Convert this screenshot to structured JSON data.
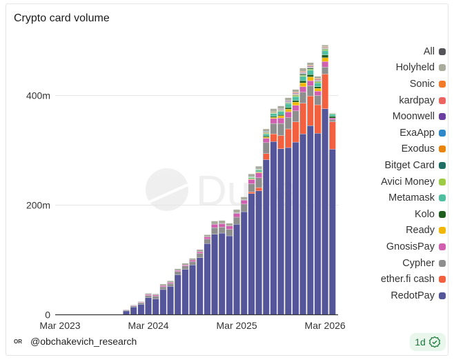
{
  "title": "Crypto card volume",
  "watermark": "Dune",
  "author": "@obchakevich_research",
  "author_icon": "OR",
  "refresh_badge": "1d",
  "legend_all": {
    "label": "All",
    "color": "#555559"
  },
  "chart_data": {
    "type": "bar",
    "stacked": true,
    "title": "Crypto card volume",
    "xlabel": "",
    "ylabel": "",
    "ylim": [
      0,
      500
    ],
    "yticks": [
      {
        "value": 0,
        "label": "0"
      },
      {
        "value": 200,
        "label": "200m"
      },
      {
        "value": 400,
        "label": "400m"
      }
    ],
    "xticks": [
      {
        "index": 0,
        "label": "Mar 2023"
      },
      {
        "index": 12,
        "label": "Mar 2024"
      },
      {
        "index": 24,
        "label": "Mar 2025"
      },
      {
        "index": 36,
        "label": "Mar 2026"
      }
    ],
    "grid": true,
    "legend_position": "right",
    "unit": "millions USD",
    "categories": [
      "Mar 2023",
      "Apr 2023",
      "May 2023",
      "Jun 2023",
      "Jul 2023",
      "Aug 2023",
      "Sep 2023",
      "Oct 2023",
      "Nov 2023",
      "Dec 2023",
      "Jan 2024",
      "Feb 2024",
      "Mar 2024",
      "Apr 2024",
      "May 2024",
      "Jun 2024",
      "Jul 2024",
      "Aug 2024",
      "Sep 2024",
      "Oct 2024",
      "Nov 2024",
      "Dec 2024",
      "Jan 2025",
      "Feb 2025",
      "Mar 2025",
      "Apr 2025",
      "May 2025",
      "Jun 2025",
      "Jul 2025",
      "Aug 2025",
      "Sep 2025",
      "Oct 2025",
      "Nov 2025",
      "Dec 2025",
      "Jan 2026",
      "Feb 2026",
      "Mar 2026",
      "Apr 2026"
    ],
    "series": [
      {
        "name": "RedotPay",
        "color": "#55559a",
        "values": [
          0,
          0,
          0,
          0,
          0,
          0,
          0,
          0,
          0,
          7,
          14,
          19,
          31,
          29,
          46,
          52,
          73,
          83,
          91,
          104,
          130,
          147,
          149,
          144,
          165,
          188,
          221,
          226,
          283,
          316,
          303,
          305,
          315,
          330,
          345,
          331,
          376,
          302
        ]
      },
      {
        "name": "ether.fi cash",
        "color": "#f2603f",
        "values": [
          0,
          0,
          0,
          0,
          0,
          0,
          0,
          0,
          0,
          0,
          0,
          0,
          0,
          0,
          0,
          0,
          0,
          0,
          0,
          0,
          0,
          0,
          0,
          0,
          0,
          0,
          3,
          6,
          11,
          14,
          24,
          34,
          37,
          56,
          54,
          52,
          63,
          50
        ]
      },
      {
        "name": "Cypher",
        "color": "#8e8e8e",
        "values": [
          0.5,
          0.5,
          0.5,
          0.5,
          0.5,
          0.5,
          0.5,
          0.5,
          0.5,
          1.5,
          2,
          3,
          4,
          5,
          5,
          5,
          6,
          6,
          6,
          8,
          8,
          12,
          11,
          12,
          13,
          14,
          15,
          18,
          20,
          19,
          22,
          21,
          20,
          20,
          19,
          17,
          13,
          4
        ]
      },
      {
        "name": "GnosisPay",
        "color": "#d05fb0",
        "values": [
          0,
          0,
          0,
          0,
          0,
          0,
          0,
          0,
          0,
          0.5,
          1,
          1,
          2,
          2,
          2,
          2,
          2,
          2,
          3,
          3,
          4,
          6,
          6,
          6,
          7,
          7,
          8,
          9,
          8,
          9,
          10,
          10,
          10,
          10,
          9,
          8,
          10,
          3
        ]
      },
      {
        "name": "Ready",
        "color": "#f2b705",
        "values": [
          0,
          0,
          0,
          0,
          0,
          0,
          0,
          0,
          0,
          0,
          0,
          0,
          0,
          0,
          0,
          0,
          0,
          0,
          0,
          0,
          0,
          0,
          0,
          0,
          0,
          0,
          1,
          1,
          2,
          2,
          4,
          5,
          6,
          7,
          7,
          5,
          7,
          0
        ]
      },
      {
        "name": "Kolo",
        "color": "#1d5e1f",
        "values": [
          0,
          0,
          0,
          0,
          0,
          0,
          0,
          0,
          0,
          0,
          0,
          0,
          0,
          0,
          0,
          0,
          0,
          0,
          0,
          0,
          0,
          0,
          0,
          0,
          0,
          0,
          0,
          1,
          2,
          2,
          2,
          3,
          3,
          4,
          4,
          3,
          5,
          3
        ]
      },
      {
        "name": "Metamask",
        "color": "#4fbfa0",
        "values": [
          0,
          0,
          0,
          0,
          0,
          0,
          0,
          0,
          0,
          0,
          0,
          0,
          0,
          0,
          0,
          0,
          0,
          0,
          0,
          0,
          0,
          0,
          0,
          0,
          1,
          1,
          2,
          3,
          4,
          5,
          6,
          7,
          7,
          8,
          8,
          7,
          8,
          4
        ]
      },
      {
        "name": "Avici Money",
        "color": "#9ccc45",
        "values": [
          0,
          0,
          0,
          0,
          0,
          0,
          0,
          0,
          0,
          0,
          0,
          0,
          0,
          0,
          0,
          0,
          0,
          0,
          0,
          0,
          0,
          0,
          0,
          0,
          0,
          0,
          1,
          1,
          1,
          1,
          1,
          1,
          2,
          2,
          2,
          2,
          2,
          1
        ]
      },
      {
        "name": "Bitget Card",
        "color": "#1f6e66",
        "values": [
          0,
          0,
          0,
          0,
          0,
          0,
          0,
          0,
          0,
          0,
          0,
          0,
          0,
          0,
          0,
          0,
          0,
          0,
          0,
          0,
          0,
          0,
          0,
          0,
          0,
          0,
          0,
          0,
          1,
          1,
          1,
          1,
          1,
          2,
          2,
          1,
          1,
          0
        ]
      },
      {
        "name": "Exodus",
        "color": "#e8830c",
        "values": [
          0,
          0,
          0,
          0,
          0,
          0,
          0,
          0,
          0,
          0,
          0,
          0,
          0,
          0,
          0,
          0,
          0,
          0,
          0,
          0,
          0,
          0,
          0,
          0,
          0,
          0,
          0,
          0,
          1,
          1,
          1,
          1,
          1,
          1,
          1,
          1,
          1,
          0
        ]
      },
      {
        "name": "ExaApp",
        "color": "#2f88c8",
        "values": [
          0,
          0,
          0,
          0,
          0,
          0,
          0,
          0,
          0,
          0,
          0,
          0,
          0,
          0,
          0,
          0,
          0,
          0,
          0,
          0,
          0,
          0,
          0,
          0,
          0,
          0,
          1,
          1,
          1,
          1,
          1,
          1,
          1,
          1,
          1,
          1,
          1,
          0
        ]
      },
      {
        "name": "Moonwell",
        "color": "#6a3fa0",
        "values": [
          0,
          0,
          0,
          0,
          0,
          0,
          0,
          0,
          0,
          0,
          0,
          0,
          0,
          0,
          0,
          0,
          0,
          0,
          0,
          0,
          0,
          0,
          0,
          0,
          0,
          0,
          0,
          0,
          0,
          0,
          0,
          1,
          1,
          1,
          1,
          1,
          0,
          0
        ]
      },
      {
        "name": "kardpay",
        "color": "#ec6460",
        "values": [
          0,
          0,
          0,
          0,
          0,
          0,
          0,
          0,
          0,
          0,
          0,
          0,
          0,
          0,
          0,
          0,
          0,
          0,
          0,
          0,
          0,
          0,
          0,
          0,
          0,
          0,
          0,
          0,
          0,
          0,
          1,
          1,
          1,
          1,
          1,
          1,
          1,
          0
        ]
      },
      {
        "name": "Sonic",
        "color": "#f27a2a",
        "values": [
          0,
          0,
          0,
          0,
          0,
          0,
          0,
          0,
          0,
          0,
          0,
          0,
          0,
          0,
          0,
          0,
          0,
          0,
          0,
          0,
          0,
          0,
          0,
          0,
          0,
          0,
          0,
          0,
          0,
          0,
          0,
          0,
          1,
          1,
          1,
          1,
          1,
          0
        ]
      },
      {
        "name": "Holyheld",
        "color": "#a9ab9c",
        "values": [
          0,
          0,
          0,
          0,
          0,
          0,
          0,
          0,
          0,
          0.5,
          1,
          1,
          2,
          2,
          3,
          3,
          3,
          3,
          3,
          4,
          4,
          6,
          6,
          5,
          6,
          5,
          5,
          5,
          5,
          5,
          5,
          5,
          5,
          6,
          5,
          4,
          3,
          1
        ]
      }
    ]
  }
}
